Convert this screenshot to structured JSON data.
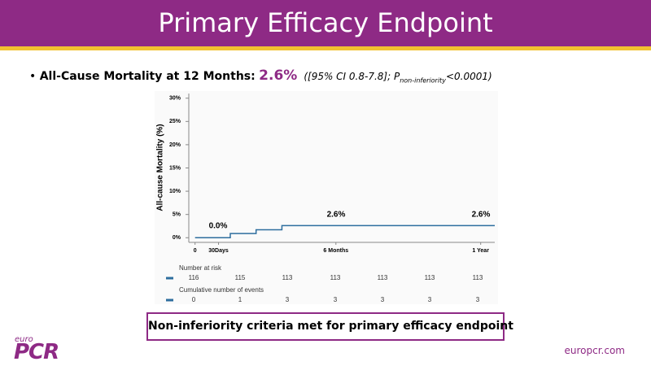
{
  "header": {
    "title": "Primary Efficacy Endpoint"
  },
  "bullet": {
    "label": "All-Cause Mortality at 12 Months:",
    "value": "2.6%",
    "ci_prefix": "([95% CI 0.8-7.8]; P",
    "subscript": "non-inferiority",
    "ci_suffix": "<0.0001)"
  },
  "chart_data": {
    "type": "step",
    "ylabel": "All-cause Mortality (%)",
    "x": [
      0,
      45,
      45,
      78,
      78,
      111,
      111,
      383
    ],
    "series": [
      {
        "color": "#2e6e9e",
        "values": [
          0,
          0,
          0.9,
          0.9,
          1.7,
          1.7,
          2.6,
          2.6
        ]
      }
    ],
    "xlim": [
      -8,
      383
    ],
    "xticks": [
      0,
      {
        "value": 30,
        "label": "30Days"
      },
      {
        "value": 180,
        "label": "6 Months"
      },
      {
        "value": 365,
        "label": "1 Year"
      }
    ],
    "ylim": [
      -1,
      31
    ],
    "yticks": [
      {
        "value": 0,
        "label": "0%"
      },
      {
        "value": 5,
        "label": "5%"
      },
      {
        "value": 10,
        "label": "10%"
      },
      {
        "value": 15,
        "label": "15%"
      },
      {
        "value": 20,
        "label": "20%"
      },
      {
        "value": 25,
        "label": "25%"
      },
      {
        "value": 30,
        "label": "30%"
      }
    ],
    "annotations": [
      "0.0%",
      "2.6%",
      "2.6%"
    ],
    "grid": false
  },
  "risk_table": {
    "rows": [
      {
        "label": "Number at risk",
        "values": [
          "116",
          "115",
          "113",
          "113",
          "113",
          "113",
          "113"
        ]
      },
      {
        "label": "Cumulative number of events",
        "values": [
          "0",
          "1",
          "3",
          "3",
          "3",
          "3",
          "3"
        ]
      }
    ]
  },
  "conclusion": "Non-inferiority criteria met for primary efficacy endpoint",
  "footer": {
    "logo_small": "euro",
    "logo_big": "PCR",
    "url": "europcr.com"
  }
}
